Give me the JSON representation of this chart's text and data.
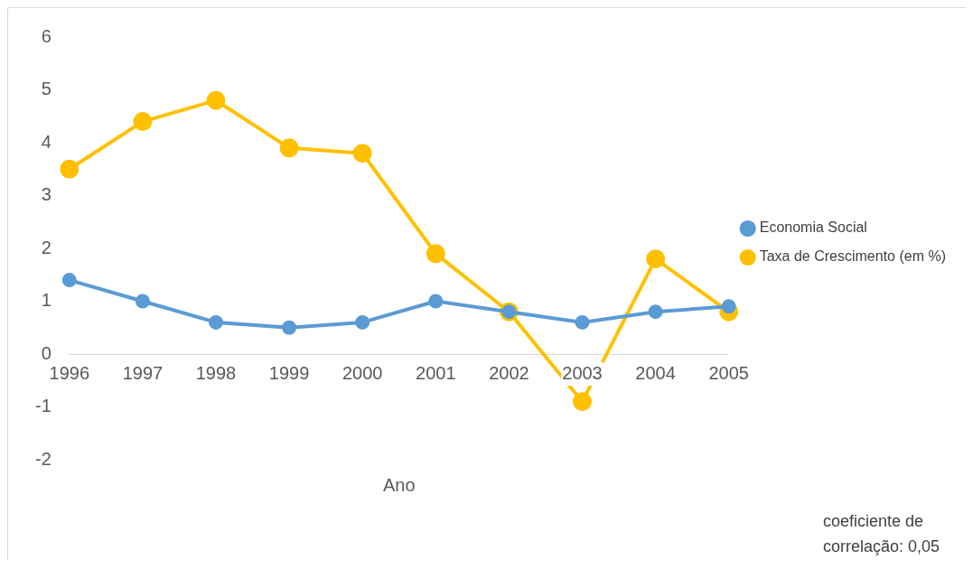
{
  "chart_data": {
    "type": "line",
    "xlabel": "Ano",
    "categories": [
      "1996",
      "1997",
      "1998",
      "1999",
      "2000",
      "2001",
      "2002",
      "2003",
      "2004",
      "2005"
    ],
    "series": [
      {
        "name": "Economia Social",
        "color": "#5b9bd5",
        "values": [
          1.4,
          1.0,
          0.6,
          0.5,
          0.6,
          1.0,
          0.8,
          0.6,
          0.8,
          0.9
        ]
      },
      {
        "name": "Taxa de Crescimento (em %)",
        "color": "#ffc000",
        "values": [
          3.5,
          4.4,
          4.8,
          3.9,
          3.8,
          1.9,
          0.8,
          -0.9,
          1.8,
          0.8
        ]
      }
    ],
    "ylim": [
      -2,
      6
    ],
    "yticks": [
      -2,
      -1,
      0,
      1,
      2,
      3,
      4,
      5,
      6
    ],
    "grid": false,
    "legend": "right",
    "marker": "circle",
    "line_style": "solid",
    "annotations": [
      "coeficiente de correlação: 0,05"
    ]
  }
}
